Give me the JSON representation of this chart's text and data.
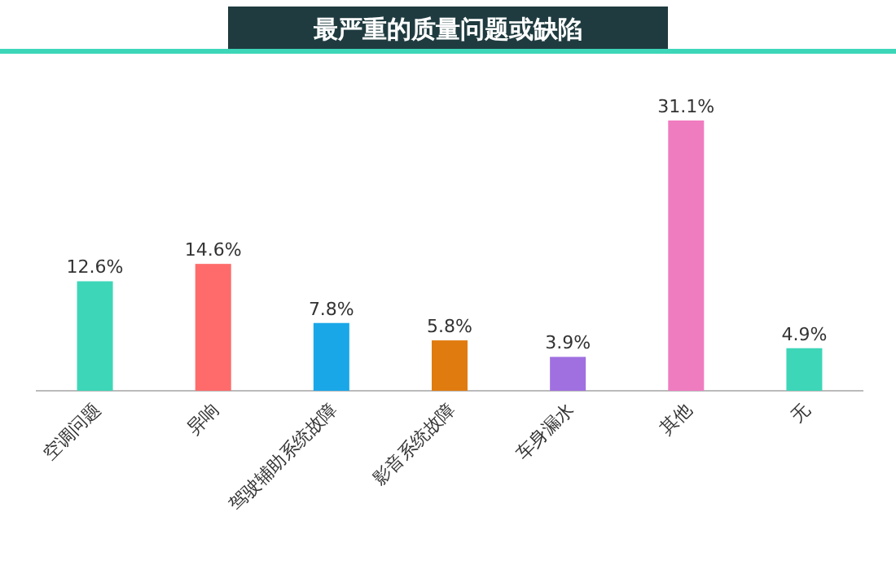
{
  "chart_data": {
    "type": "bar",
    "title": "最严重的质量问题或缺陷",
    "categories": [
      "空调问题",
      "异响",
      "驾驶辅助系统故障",
      "影音系统故障",
      "车身漏水",
      "其他",
      "无"
    ],
    "values": [
      12.6,
      14.6,
      7.8,
      5.8,
      3.9,
      31.1,
      4.9
    ],
    "value_labels": [
      "12.6%",
      "14.6%",
      "7.8%",
      "5.8%",
      "3.9%",
      "31.1%",
      "4.9%"
    ],
    "colors": [
      "#3dd6b8",
      "#ff6b6b",
      "#1aa7e8",
      "#e07b10",
      "#a070e0",
      "#f07cc0",
      "#3dd6b8"
    ]
  }
}
